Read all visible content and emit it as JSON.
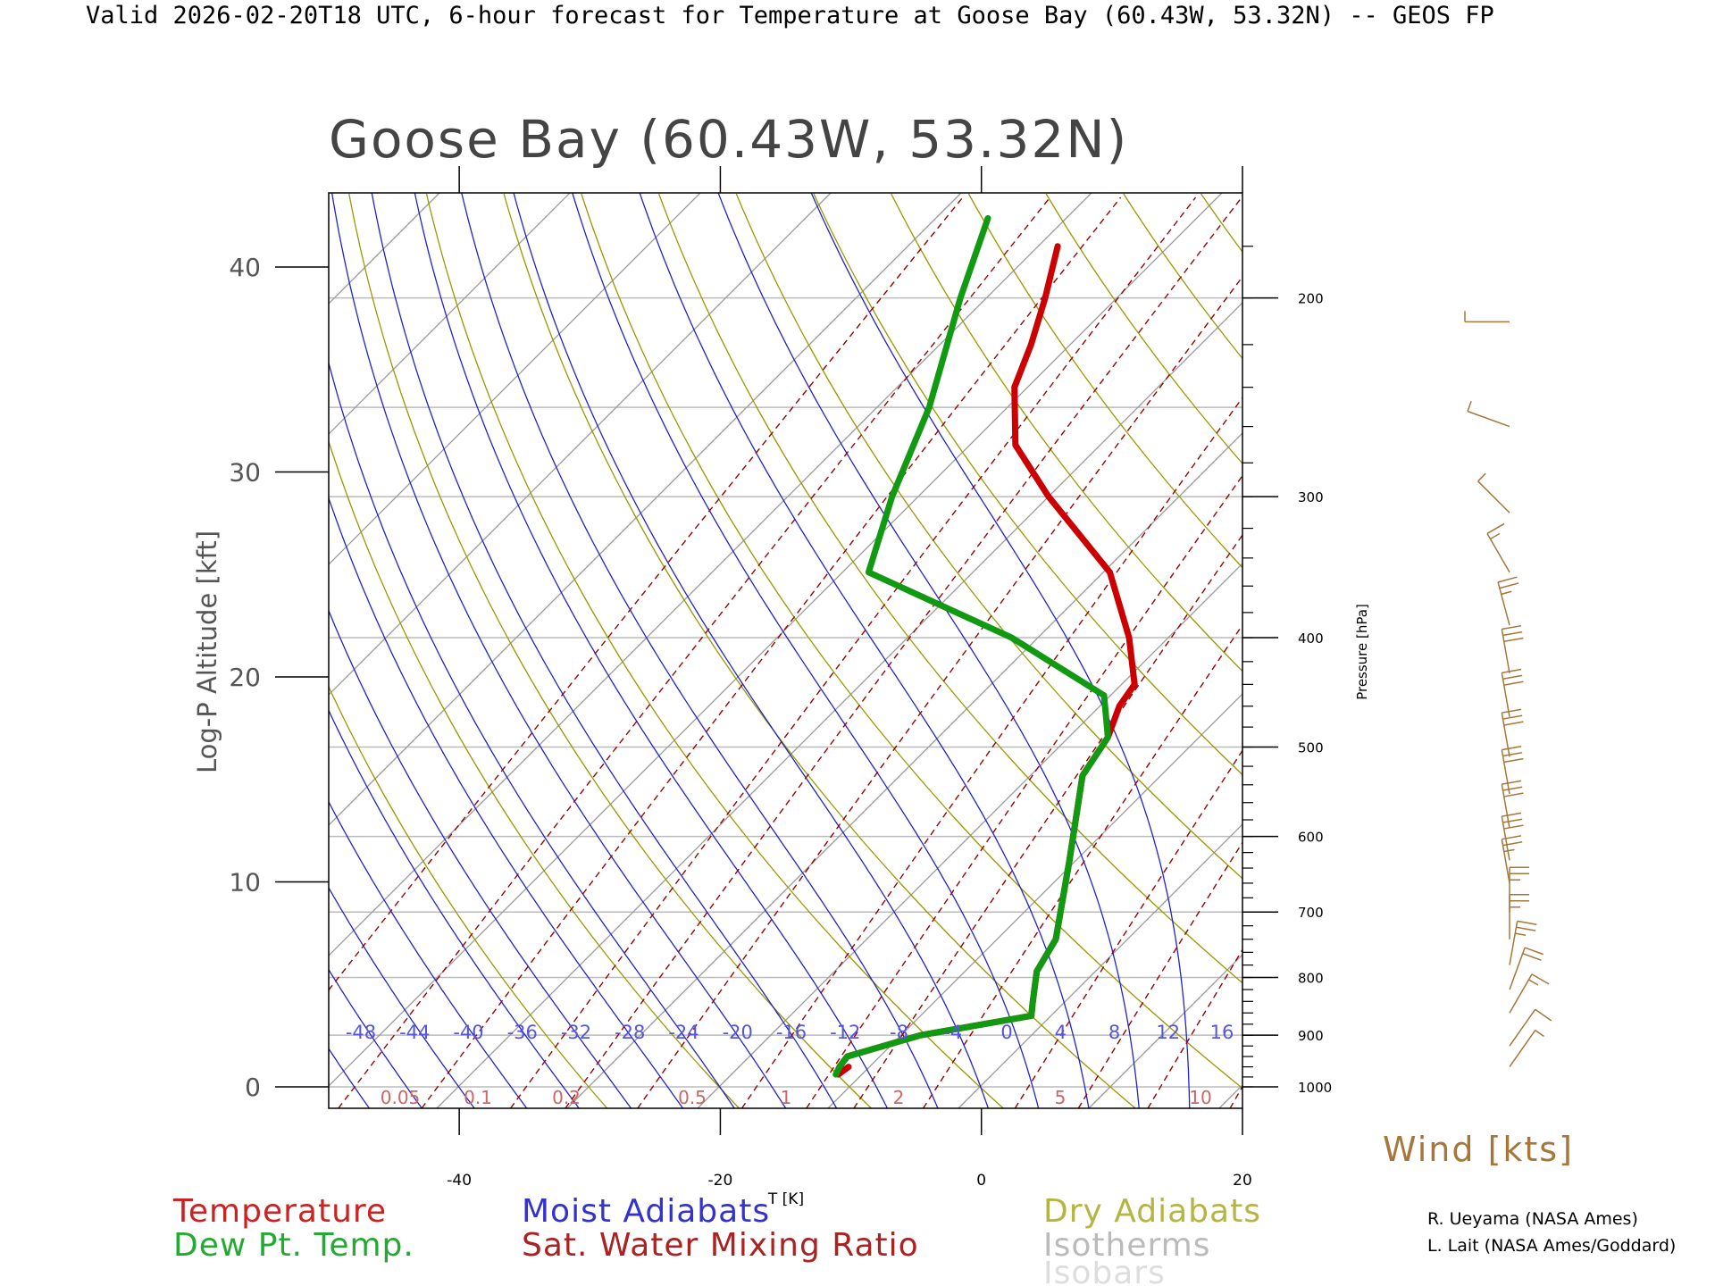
{
  "header": "Valid 2026-02-20T18 UTC, 6-hour forecast for Temperature at Goose Bay (60.43W, 53.32N) -- GEOS FP",
  "chart_data": {
    "type": "skew-t log-p diagram",
    "title": "Goose Bay (60.43W, 53.32N)",
    "xlabel": "T [K]",
    "ylabel": "Log-P Altitude [kft]",
    "y2label": "Pressure [hPa]",
    "wind_label": "Wind [kts]",
    "xlim": [
      -50,
      20
    ],
    "ylim_kft": [
      -1,
      43
    ],
    "x_ticks": [
      -40,
      -20,
      0,
      20
    ],
    "y_ticks": [
      0,
      10,
      20,
      30,
      40
    ],
    "pressure_ticks": [
      1000,
      900,
      800,
      700,
      600,
      500,
      400,
      300,
      200
    ],
    "moist_adiabat_labels": [
      -48,
      -44,
      -40,
      -36,
      -32,
      -28,
      -24,
      -20,
      -16,
      -12,
      -8,
      -4,
      0,
      4,
      8,
      12,
      16
    ],
    "mixing_ratio_labels": [
      "0.05",
      "0.1",
      "0.2",
      "0.5",
      "1",
      "2",
      "5",
      "10"
    ],
    "mixing_ratio_values": [
      0.05,
      0.1,
      0.2,
      0.5,
      1,
      2,
      5,
      10
    ],
    "colors": {
      "temperature": "#cc0000",
      "dewpoint": "#119911",
      "moist_adiabats": "#2222cc",
      "mixing_ratio": "#990000",
      "dry_adiabats": "#999900",
      "isotherms": "#999999",
      "isobars": "#bbbbbb",
      "wind": "#a5773a"
    },
    "series": [
      {
        "name": "Temperature",
        "points": [
          {
            "p": 960,
            "t": -11.6
          },
          {
            "p": 975,
            "t": -11.8
          },
          {
            "p": 960,
            "t": -12.3
          },
          {
            "p": 940,
            "t": -12.5
          },
          {
            "p": 900,
            "t": -8.5
          },
          {
            "p": 865,
            "t": -1.5
          },
          {
            "p": 845,
            "t": -2.3
          },
          {
            "p": 790,
            "t": -4.5
          },
          {
            "p": 740,
            "t": -5.5
          },
          {
            "p": 630,
            "t": -10.5
          },
          {
            "p": 530,
            "t": -16.0
          },
          {
            "p": 490,
            "t": -17.0
          },
          {
            "p": 460,
            "t": -18.5
          },
          {
            "p": 440,
            "t": -19.0
          },
          {
            "p": 400,
            "t": -23.0
          },
          {
            "p": 350,
            "t": -29.5
          },
          {
            "p": 300,
            "t": -40.0
          },
          {
            "p": 270,
            "t": -46.5
          },
          {
            "p": 240,
            "t": -51.0
          },
          {
            "p": 220,
            "t": -53.0
          },
          {
            "p": 200,
            "t": -55.5
          },
          {
            "p": 180,
            "t": -58.5
          }
        ]
      },
      {
        "name": "Dew Pt. Temp.",
        "points": [
          {
            "p": 960,
            "t": -12.3
          },
          {
            "p": 975,
            "t": -12.0
          },
          {
            "p": 960,
            "t": -12.3
          },
          {
            "p": 940,
            "t": -12.5
          },
          {
            "p": 900,
            "t": -8.5
          },
          {
            "p": 865,
            "t": -1.5
          },
          {
            "p": 845,
            "t": -2.3
          },
          {
            "p": 790,
            "t": -4.5
          },
          {
            "p": 740,
            "t": -5.5
          },
          {
            "p": 630,
            "t": -10.5
          },
          {
            "p": 530,
            "t": -16.0
          },
          {
            "p": 490,
            "t": -17.0
          },
          {
            "p": 450,
            "t": -20.5
          },
          {
            "p": 400,
            "t": -32.0
          },
          {
            "p": 350,
            "t": -48.0
          },
          {
            "p": 300,
            "t": -52.0
          },
          {
            "p": 250,
            "t": -56.0
          },
          {
            "p": 200,
            "t": -62.0
          },
          {
            "p": 170,
            "t": -66.0
          }
        ]
      }
    ],
    "winds": [
      {
        "p": 210,
        "speed": 5,
        "dir": 270
      },
      {
        "p": 260,
        "speed": 5,
        "dir": 290
      },
      {
        "p": 310,
        "speed": 5,
        "dir": 315
      },
      {
        "p": 350,
        "speed": 15,
        "dir": 330
      },
      {
        "p": 390,
        "speed": 25,
        "dir": 345
      },
      {
        "p": 430,
        "speed": 30,
        "dir": 350
      },
      {
        "p": 470,
        "speed": 30,
        "dir": 350
      },
      {
        "p": 510,
        "speed": 30,
        "dir": 350
      },
      {
        "p": 550,
        "speed": 30,
        "dir": 350
      },
      {
        "p": 590,
        "speed": 30,
        "dir": 350
      },
      {
        "p": 630,
        "speed": 30,
        "dir": 350
      },
      {
        "p": 660,
        "speed": 25,
        "dir": 350
      },
      {
        "p": 700,
        "speed": 25,
        "dir": 0
      },
      {
        "p": 740,
        "speed": 25,
        "dir": 0
      },
      {
        "p": 780,
        "speed": 25,
        "dir": 10
      },
      {
        "p": 820,
        "speed": 20,
        "dir": 20
      },
      {
        "p": 860,
        "speed": 15,
        "dir": 30
      },
      {
        "p": 920,
        "speed": 10,
        "dir": 35
      },
      {
        "p": 960,
        "speed": 5,
        "dir": 35
      }
    ]
  },
  "legend": {
    "temperature": "Temperature",
    "dewpoint": "Dew Pt. Temp.",
    "moist": "Moist Adiabats",
    "mixing": "Sat. Water Mixing Ratio",
    "dry": "Dry Adiabats",
    "isotherms": "Isotherms",
    "isobars": "Isobars"
  },
  "credits": [
    "R. Ueyama (NASA Ames)",
    "L. Lait (NASA Ames/Goddard)"
  ]
}
